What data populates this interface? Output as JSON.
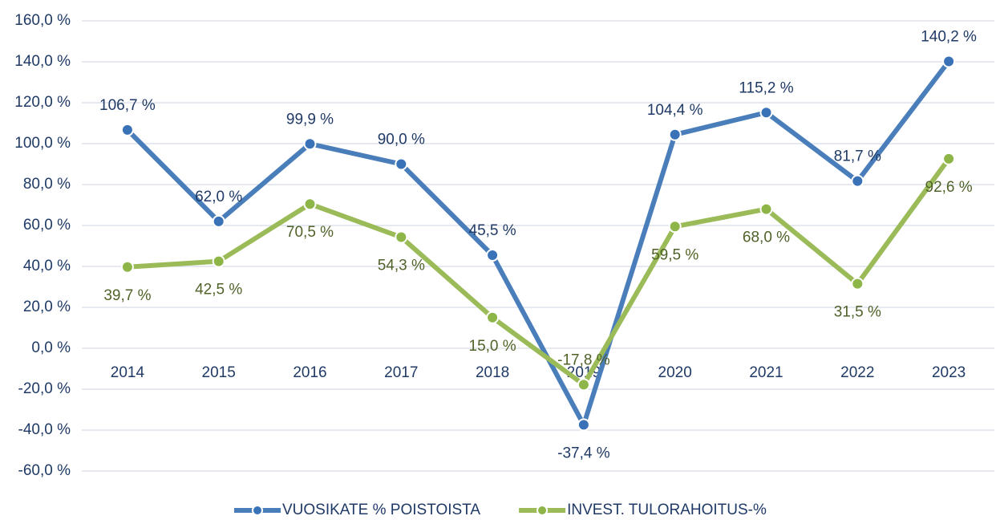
{
  "chart_data": {
    "type": "line",
    "categories": [
      "2014",
      "2015",
      "2016",
      "2017",
      "2018",
      "2019",
      "2020",
      "2021",
      "2022",
      "2023"
    ],
    "series": [
      {
        "name": "VUOSIKATE % POISTOISTA",
        "color": "#4a7ebb",
        "marker_color": "#3a72b8",
        "label_color": "#1f3a66",
        "values": [
          106.7,
          62.0,
          99.9,
          90.0,
          45.5,
          -37.4,
          104.4,
          115.2,
          81.7,
          140.2
        ],
        "value_labels": [
          "106,7 %",
          "62,0 %",
          "99,9 %",
          "90,0 %",
          "45,5 %",
          "-37,4 %",
          "104,4 %",
          "115,2 %",
          "81,7 %",
          "140,2 %"
        ]
      },
      {
        "name": "INVEST. TULORAHOITUS-%",
        "color": "#9bbb59",
        "marker_color": "#8db548",
        "label_color": "#4f6228",
        "values": [
          39.7,
          42.5,
          70.5,
          54.3,
          15.0,
          -17.8,
          59.5,
          68.0,
          31.5,
          92.6
        ],
        "value_labels": [
          "39,7 %",
          "42,5 %",
          "70,5 %",
          "54,3 %",
          "15,0 %",
          "-17,8 %",
          "59,5 %",
          "68,0 %",
          "31,5 %",
          "92,6 %"
        ]
      }
    ],
    "ylim": [
      -60,
      160
    ],
    "yticks": [
      {
        "value": -60,
        "label": "-60,0 %"
      },
      {
        "value": -40,
        "label": "-40,0 %"
      },
      {
        "value": -20,
        "label": "-20,0 %"
      },
      {
        "value": 0,
        "label": "0,0 %"
      },
      {
        "value": 20,
        "label": "20,0 %"
      },
      {
        "value": 40,
        "label": "40,0 %"
      },
      {
        "value": 60,
        "label": "60,0 %"
      },
      {
        "value": 80,
        "label": "80,0 %"
      },
      {
        "value": 100,
        "label": "100,0 %"
      },
      {
        "value": 120,
        "label": "120,0 %"
      },
      {
        "value": 140,
        "label": "140,0 %"
      },
      {
        "value": 160,
        "label": "160,0 %"
      }
    ],
    "grid": true,
    "legend": "bottom"
  }
}
